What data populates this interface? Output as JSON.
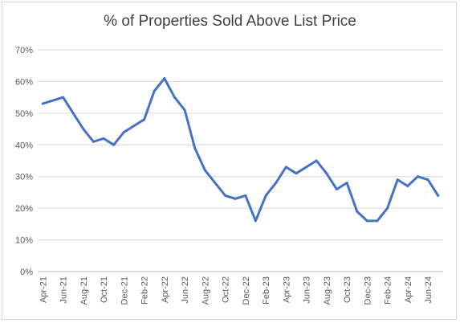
{
  "chart_data": {
    "type": "line",
    "title": "% of Properties Sold Above List Price",
    "xlabel": "",
    "ylabel": "",
    "ylim": [
      0,
      70
    ],
    "y_ticks": [
      "0%",
      "10%",
      "20%",
      "30%",
      "40%",
      "50%",
      "60%",
      "70%"
    ],
    "x_tick_labels": [
      "Apr-21",
      "Jun-21",
      "Aug-21",
      "Oct-21",
      "Dec-21",
      "Feb-22",
      "Apr-22",
      "Jun-22",
      "Aug-22",
      "Oct-22",
      "Dec-22",
      "Feb-23",
      "Apr-23",
      "Jun-23",
      "Aug-23",
      "Oct-23",
      "Dec-23",
      "Feb-24",
      "Apr-24",
      "Jun-24"
    ],
    "grid": true,
    "legend": "none",
    "color": "#4472C4",
    "x": [
      "Apr-21",
      "May-21",
      "Jun-21",
      "Jul-21",
      "Aug-21",
      "Sep-21",
      "Oct-21",
      "Nov-21",
      "Dec-21",
      "Jan-22",
      "Feb-22",
      "Mar-22",
      "Apr-22",
      "May-22",
      "Jun-22",
      "Jul-22",
      "Aug-22",
      "Sep-22",
      "Oct-22",
      "Nov-22",
      "Dec-22",
      "Jan-23",
      "Feb-23",
      "Mar-23",
      "Apr-23",
      "May-23",
      "Jun-23",
      "Jul-23",
      "Aug-23",
      "Sep-23",
      "Oct-23",
      "Nov-23",
      "Dec-23",
      "Jan-24",
      "Feb-24",
      "Mar-24",
      "Apr-24",
      "May-24",
      "Jun-24",
      "Jul-24"
    ],
    "values": [
      53,
      54,
      55,
      50,
      45,
      41,
      42,
      40,
      44,
      46,
      48,
      57,
      61,
      55,
      51,
      39,
      32,
      28,
      24,
      23,
      24,
      16,
      24,
      28,
      33,
      31,
      33,
      35,
      31,
      26,
      28,
      19,
      16,
      16,
      20,
      29,
      27,
      30,
      29,
      24
    ]
  }
}
